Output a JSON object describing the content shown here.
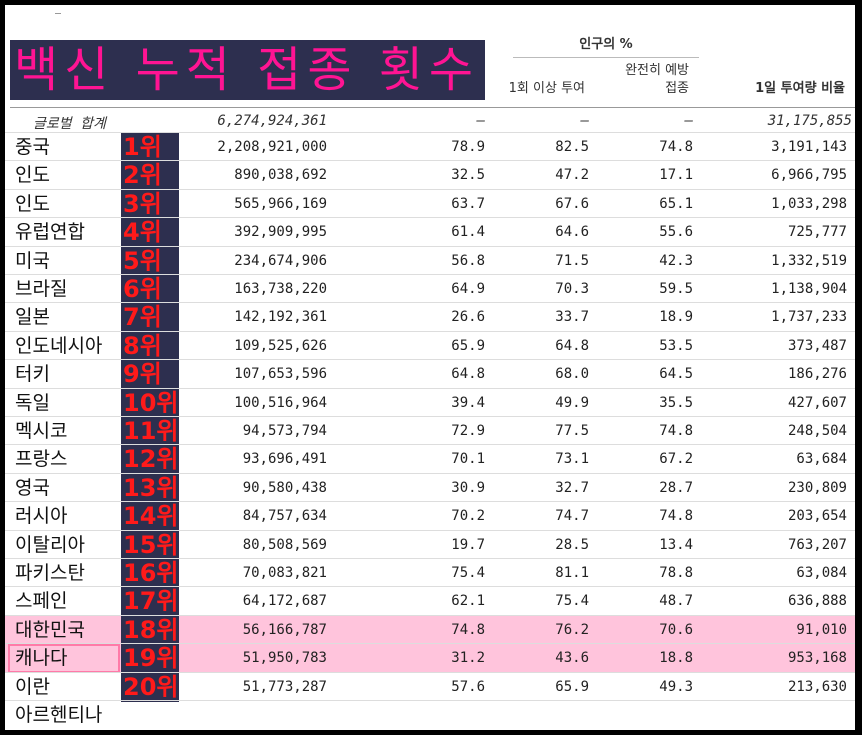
{
  "banner": {
    "title": "백신 누적 접종 횟수"
  },
  "header": {
    "group": "인구의 %",
    "col_one_dose": "1회 이상 투여",
    "col_full_line1": "완전히 예방",
    "col_full_line2": "접종",
    "col_daily": "1일 투여량 비율"
  },
  "global": {
    "label": "글로벌 합계",
    "total": "6,274,924,361",
    "pct": "–",
    "one_dose": "–",
    "full": "–",
    "daily": "31,175,855"
  },
  "rows": [
    {
      "country": "중국",
      "rank": "1위",
      "total": "2,208,921,000",
      "pct": "78.9",
      "one_dose": "82.5",
      "full": "74.8",
      "daily": "3,191,143"
    },
    {
      "country": "인도",
      "rank": "2위",
      "total": "890,038,692",
      "pct": "32.5",
      "one_dose": "47.2",
      "full": "17.1",
      "daily": "6,966,795"
    },
    {
      "country": "인도",
      "rank": "3위",
      "total": "565,966,169",
      "pct": "63.7",
      "one_dose": "67.6",
      "full": "65.1",
      "daily": "1,033,298"
    },
    {
      "country": "유럽연합",
      "rank": "4위",
      "total": "392,909,995",
      "pct": "61.4",
      "one_dose": "64.6",
      "full": "55.6",
      "daily": "725,777"
    },
    {
      "country": "미국",
      "rank": "5위",
      "total": "234,674,906",
      "pct": "56.8",
      "one_dose": "71.5",
      "full": "42.3",
      "daily": "1,332,519"
    },
    {
      "country": "브라질",
      "rank": "6위",
      "total": "163,738,220",
      "pct": "64.9",
      "one_dose": "70.3",
      "full": "59.5",
      "daily": "1,138,904"
    },
    {
      "country": "일본",
      "rank": "7위",
      "total": "142,192,361",
      "pct": "26.6",
      "one_dose": "33.7",
      "full": "18.9",
      "daily": "1,737,233"
    },
    {
      "country": "인도네시아",
      "rank": "8위",
      "total": "109,525,626",
      "pct": "65.9",
      "one_dose": "64.8",
      "full": "53.5",
      "daily": "373,487"
    },
    {
      "country": "터키",
      "rank": "9위",
      "total": "107,653,596",
      "pct": "64.8",
      "one_dose": "68.0",
      "full": "64.5",
      "daily": "186,276"
    },
    {
      "country": "독일",
      "rank": "10위",
      "total": "100,516,964",
      "pct": "39.4",
      "one_dose": "49.9",
      "full": "35.5",
      "daily": "427,607"
    },
    {
      "country": "멕시코",
      "rank": "11위",
      "total": "94,573,794",
      "pct": "72.9",
      "one_dose": "77.5",
      "full": "74.8",
      "daily": "248,504"
    },
    {
      "country": "프랑스",
      "rank": "12위",
      "total": "93,696,491",
      "pct": "70.1",
      "one_dose": "73.1",
      "full": "67.2",
      "daily": "63,684"
    },
    {
      "country": "영국",
      "rank": "13위",
      "total": "90,580,438",
      "pct": "30.9",
      "one_dose": "32.7",
      "full": "28.7",
      "daily": "230,809"
    },
    {
      "country": "러시아",
      "rank": "14위",
      "total": "84,757,634",
      "pct": "70.2",
      "one_dose": "74.7",
      "full": "74.8",
      "daily": "203,654"
    },
    {
      "country": "이탈리아",
      "rank": "15위",
      "total": "80,508,569",
      "pct": "19.7",
      "one_dose": "28.5",
      "full": "13.4",
      "daily": "763,207"
    },
    {
      "country": "파키스탄",
      "rank": "16위",
      "total": "70,083,821",
      "pct": "75.4",
      "one_dose": "81.1",
      "full": "78.8",
      "daily": "63,084"
    },
    {
      "country": "스페인",
      "rank": "17위",
      "total": "64,172,687",
      "pct": "62.1",
      "one_dose": "75.4",
      "full": "48.7",
      "daily": "636,888"
    },
    {
      "country": "대한민국",
      "rank": "18위",
      "total": "56,166,787",
      "pct": "74.8",
      "one_dose": "76.2",
      "full": "70.6",
      "daily": "91,010"
    },
    {
      "country": "캐나다",
      "rank": "19위",
      "total": "51,950,783",
      "pct": "31.2",
      "one_dose": "43.6",
      "full": "18.8",
      "daily": "953,168"
    },
    {
      "country": "이란",
      "rank": "20위",
      "total": "51,773,287",
      "pct": "57.6",
      "one_dose": "65.9",
      "full": "49.3",
      "daily": "213,630"
    },
    {
      "country": "아르헨티나",
      "rank": "",
      "total": "",
      "pct": "",
      "one_dose": "",
      "full": "",
      "daily": ""
    }
  ],
  "highlight": {
    "country_row": 18,
    "data_row": 16,
    "color": "#ffc4dc"
  }
}
